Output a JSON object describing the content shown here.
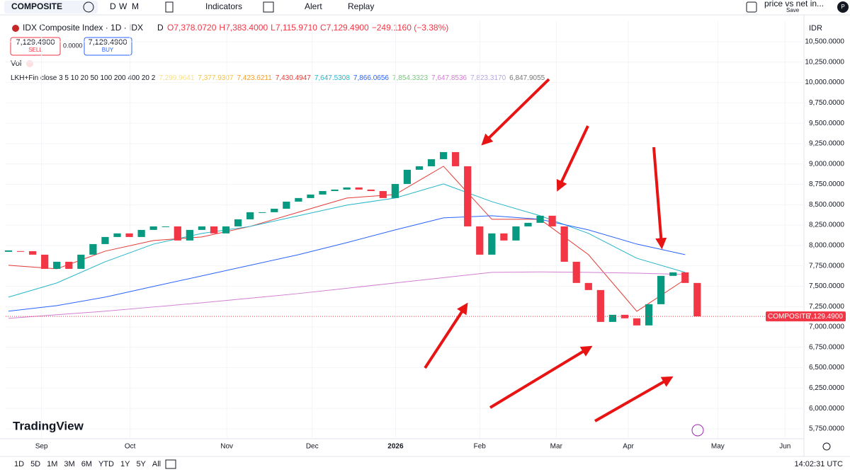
{
  "toolbar": {
    "symbol": "COMPOSITE",
    "intervals": [
      "D",
      "W",
      "M"
    ],
    "indicators": "Indicators",
    "alert": "Alert",
    "replay": "Replay",
    "layout_name": "price vs net in...",
    "save": "Save",
    "avatar": "P"
  },
  "legend": {
    "title": "IDX Composite Index · 1D · IDX",
    "source": "D",
    "ohlc": [
      "O7,378.0720",
      "H7,383.4000",
      "L7,115.9710",
      "C7,129.4900",
      "−249.1160 (−3.38%)"
    ],
    "sell_price": "7,129.4900",
    "sell": "SELL",
    "spread": "0.0000",
    "buy_price": "7,129.4900",
    "buy": "BUY",
    "vol": "Vol",
    "indicator": "LKH+Fin close 3 5 10 20 50 100 200 400 20 2",
    "indicator_values": [
      {
        "text": "7,299.9641",
        "color": "#f7e08a"
      },
      {
        "text": "7,377.9307",
        "color": "#f5c242"
      },
      {
        "text": "7,423.6211",
        "color": "#f59e2a"
      },
      {
        "text": "7,430.4947",
        "color": "#e53935"
      },
      {
        "text": "7,647.5308",
        "color": "#26b5c9"
      },
      {
        "text": "7,866.0656",
        "color": "#2962ff"
      },
      {
        "text": "7,854.3323",
        "color": "#7bc47f"
      },
      {
        "text": "7,647.8536",
        "color": "#d17fd1"
      },
      {
        "text": "7,823.3170",
        "color": "#b7a8e0"
      },
      {
        "text": "6,847.9055",
        "color": "#777777"
      }
    ]
  },
  "currency": "IDR",
  "price_tag": {
    "name": "COMPOSITE",
    "label": "7,129.4900"
  },
  "watermark": "TradingView",
  "timeframes": [
    "1D",
    "5D",
    "1M",
    "3M",
    "6M",
    "YTD",
    "1Y",
    "5Y",
    "All"
  ],
  "clock": "14:02:31 UTC",
  "chart_data": {
    "type": "candlestick",
    "up_color": "#089981",
    "down_color": "#f23645",
    "x": [
      0,
      3,
      6,
      9,
      12,
      15,
      18,
      21,
      24,
      27,
      30,
      33,
      36,
      39,
      42,
      45,
      48,
      51,
      54,
      57,
      60,
      63,
      66,
      69,
      72,
      75,
      78,
      81,
      84,
      87,
      90,
      93,
      96,
      99,
      102,
      105,
      108,
      111,
      114,
      117,
      120,
      123,
      126,
      129,
      132,
      135,
      138,
      141,
      144,
      147,
      150,
      153,
      156,
      159,
      162,
      165,
      168,
      171
    ],
    "values": [
      7931,
      7930,
      7887,
      7713,
      7800,
      7713,
      7887,
      8017,
      8104,
      8148,
      8104,
      8191,
      8234,
      8234,
      8061,
      8191,
      8234,
      8148,
      8234,
      8321,
      8408,
      8408,
      8451,
      8538,
      8582,
      8625,
      8668,
      8686,
      8712,
      8686,
      8668,
      8582,
      8755,
      8929,
      8972,
      9059,
      9146,
      8972,
      8234,
      7887,
      8148,
      8061,
      8234,
      8278,
      8365,
      8234,
      7800,
      7540,
      7453,
      7062,
      7149,
      7106,
      7019,
      7279,
      7627,
      7670,
      7540,
      7129.49
    ],
    "last_price": 7129.49,
    "indicators": [
      {
        "color": "#e53935",
        "x": [
          0,
          12,
          24,
          36,
          48,
          60,
          72,
          84,
          96,
          108,
          120,
          132,
          144,
          156,
          168
        ],
        "values": [
          7757,
          7713,
          7930,
          8061,
          8104,
          8234,
          8408,
          8582,
          8625,
          8972,
          8321,
          8321,
          7887,
          7192,
          7583
        ]
      },
      {
        "color": "#26b5c9",
        "x": [
          0,
          12,
          24,
          36,
          48,
          60,
          72,
          84,
          96,
          108,
          120,
          132,
          144,
          156,
          168
        ],
        "values": [
          7366,
          7540,
          7800,
          8017,
          8148,
          8234,
          8365,
          8495,
          8582,
          8755,
          8538,
          8365,
          8148,
          7843,
          7670
        ]
      },
      {
        "color": "#2962ff",
        "x": [
          0,
          12,
          24,
          36,
          48,
          60,
          72,
          84,
          96,
          108,
          120,
          132,
          144,
          156,
          168
        ],
        "values": [
          7193,
          7262,
          7366,
          7497,
          7627,
          7757,
          7887,
          8035,
          8191,
          8339,
          8365,
          8321,
          8191,
          8017,
          7887
        ]
      },
      {
        "color": "#d17fd1",
        "x": [
          0,
          12,
          24,
          36,
          48,
          60,
          72,
          84,
          96,
          108,
          120,
          132,
          144,
          156,
          168
        ],
        "values": [
          7106,
          7150,
          7193,
          7245,
          7297,
          7353,
          7410,
          7475,
          7540,
          7605,
          7670,
          7675,
          7670,
          7660,
          7644
        ]
      }
    ],
    "xlim": [
      -0.7,
      197.5
    ],
    "xticks": [
      {
        "value": 8.2,
        "label": "Sep"
      },
      {
        "value": 30.2,
        "label": "Oct"
      },
      {
        "value": 54.2,
        "label": "Nov"
      },
      {
        "value": 75.4,
        "label": "Dec"
      },
      {
        "value": 96.1,
        "label": "2026"
      },
      {
        "value": 117,
        "label": "Feb"
      },
      {
        "value": 136,
        "label": "Mar"
      },
      {
        "value": 153.9,
        "label": "Apr"
      },
      {
        "value": 176.1,
        "label": "May"
      },
      {
        "value": 192.8,
        "label": "Jun"
      }
    ],
    "ylim": [
      5628,
      10752
    ],
    "yticks": [
      {
        "value": 5750,
        "label": "5,750.0000"
      },
      {
        "value": 6000,
        "label": "6,000.0000"
      },
      {
        "value": 6250,
        "label": "6,250.0000"
      },
      {
        "value": 6500,
        "label": "6,500.0000"
      },
      {
        "value": 6750,
        "label": "6,750.0000"
      },
      {
        "value": 7000,
        "label": "7,000.0000"
      },
      {
        "value": 7250,
        "label": "7,250.0000"
      },
      {
        "value": 7500,
        "label": "7,500.0000"
      },
      {
        "value": 7750,
        "label": "7,750.0000"
      },
      {
        "value": 8000,
        "label": "8,000.0000"
      },
      {
        "value": 8250,
        "label": "8,250.0000"
      },
      {
        "value": 8500,
        "label": "8,500.0000"
      },
      {
        "value": 8750,
        "label": "8,750.0000"
      },
      {
        "value": 9000,
        "label": "9,000.0000"
      },
      {
        "value": 9250,
        "label": "9,250.0000"
      },
      {
        "value": 9500,
        "label": "9,500.0000"
      },
      {
        "value": 9750,
        "label": "9,750.0000"
      },
      {
        "value": 10000,
        "label": "10,000.0000"
      },
      {
        "value": 10250,
        "label": "10,250.0000"
      },
      {
        "value": 10500,
        "label": "10,500.0000"
      }
    ]
  }
}
